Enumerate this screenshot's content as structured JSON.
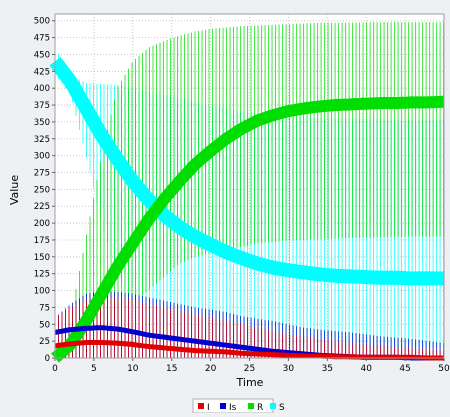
{
  "chart_data": {
    "type": "line",
    "title": "",
    "xlabel": "Time",
    "ylabel": "Value",
    "xlim": [
      0,
      50
    ],
    "ylim": [
      0,
      510
    ],
    "xticks": [
      0,
      5,
      10,
      15,
      20,
      25,
      30,
      35,
      40,
      45,
      50
    ],
    "yticks": [
      0,
      25,
      50,
      75,
      100,
      125,
      150,
      175,
      200,
      225,
      250,
      275,
      300,
      325,
      350,
      375,
      400,
      425,
      450,
      475,
      500
    ],
    "grid": true,
    "legend_position": "bottom",
    "x": [
      0,
      2,
      4,
      6,
      8,
      10,
      12,
      14,
      16,
      18,
      20,
      22,
      24,
      26,
      28,
      30,
      32,
      34,
      36,
      38,
      40,
      42,
      44,
      46,
      48,
      50
    ],
    "series": [
      {
        "name": "I",
        "color": "#e00000",
        "values": [
          18,
          21,
          23,
          23,
          22,
          20,
          17,
          15,
          13,
          11,
          10,
          9,
          7,
          6,
          5,
          4,
          3,
          3,
          2,
          2,
          1,
          1,
          1,
          1,
          0,
          0
        ],
        "upper": [
          60,
          75,
          85,
          90,
          88,
          85,
          80,
          75,
          70,
          65,
          60,
          55,
          50,
          45,
          40,
          35,
          32,
          28,
          25,
          22,
          20,
          18,
          16,
          14,
          12,
          10
        ]
      },
      {
        "name": "Is",
        "color": "#0000cc",
        "values": [
          38,
          42,
          44,
          45,
          43,
          39,
          34,
          31,
          28,
          25,
          22,
          19,
          16,
          13,
          10,
          8,
          6,
          4,
          3,
          2,
          1,
          1,
          1,
          0,
          0,
          0
        ],
        "upper": [
          60,
          80,
          95,
          100,
          98,
          95,
          90,
          85,
          80,
          75,
          72,
          68,
          62,
          58,
          55,
          50,
          45,
          42,
          40,
          38,
          35,
          32,
          30,
          28,
          25,
          22
        ]
      },
      {
        "name": "R",
        "color": "#00dd00",
        "values": [
          0,
          20,
          55,
          95,
          135,
          170,
          205,
          235,
          262,
          287,
          307,
          325,
          340,
          352,
          360,
          366,
          370,
          373,
          375,
          376,
          377,
          378,
          378,
          379,
          379,
          380
        ],
        "lower": [
          0,
          0,
          0,
          20,
          60,
          80,
          100,
          120,
          140,
          150,
          155,
          160,
          165,
          170,
          172,
          174,
          175,
          176,
          177,
          178,
          178,
          179,
          179,
          180,
          180,
          180
        ],
        "upper": [
          0,
          60,
          180,
          300,
          400,
          440,
          460,
          470,
          478,
          484,
          488,
          490,
          492,
          493,
          494,
          495,
          496,
          497,
          497,
          497,
          498,
          498,
          498,
          498,
          498,
          498
        ]
      },
      {
        "name": "S",
        "color": "#00ffff",
        "values": [
          440,
          410,
          370,
          330,
          295,
          262,
          235,
          212,
          194,
          180,
          168,
          157,
          148,
          140,
          134,
          130,
          127,
          124,
          122,
          121,
          120,
          119,
          119,
          118,
          118,
          118
        ],
        "lower": [
          420,
          390,
          300,
          200,
          120,
          80,
          60,
          45,
          35,
          30,
          25,
          22,
          20,
          18,
          17,
          16,
          15,
          15,
          15,
          15,
          15,
          15,
          15,
          15,
          15,
          15
        ],
        "upper": [
          460,
          420,
          408,
          406,
          405,
          400,
          395,
          390,
          385,
          380,
          375,
          370,
          365,
          362,
          360,
          358,
          356,
          355,
          355,
          354,
          354,
          354,
          353,
          353,
          353,
          353
        ]
      }
    ]
  }
}
